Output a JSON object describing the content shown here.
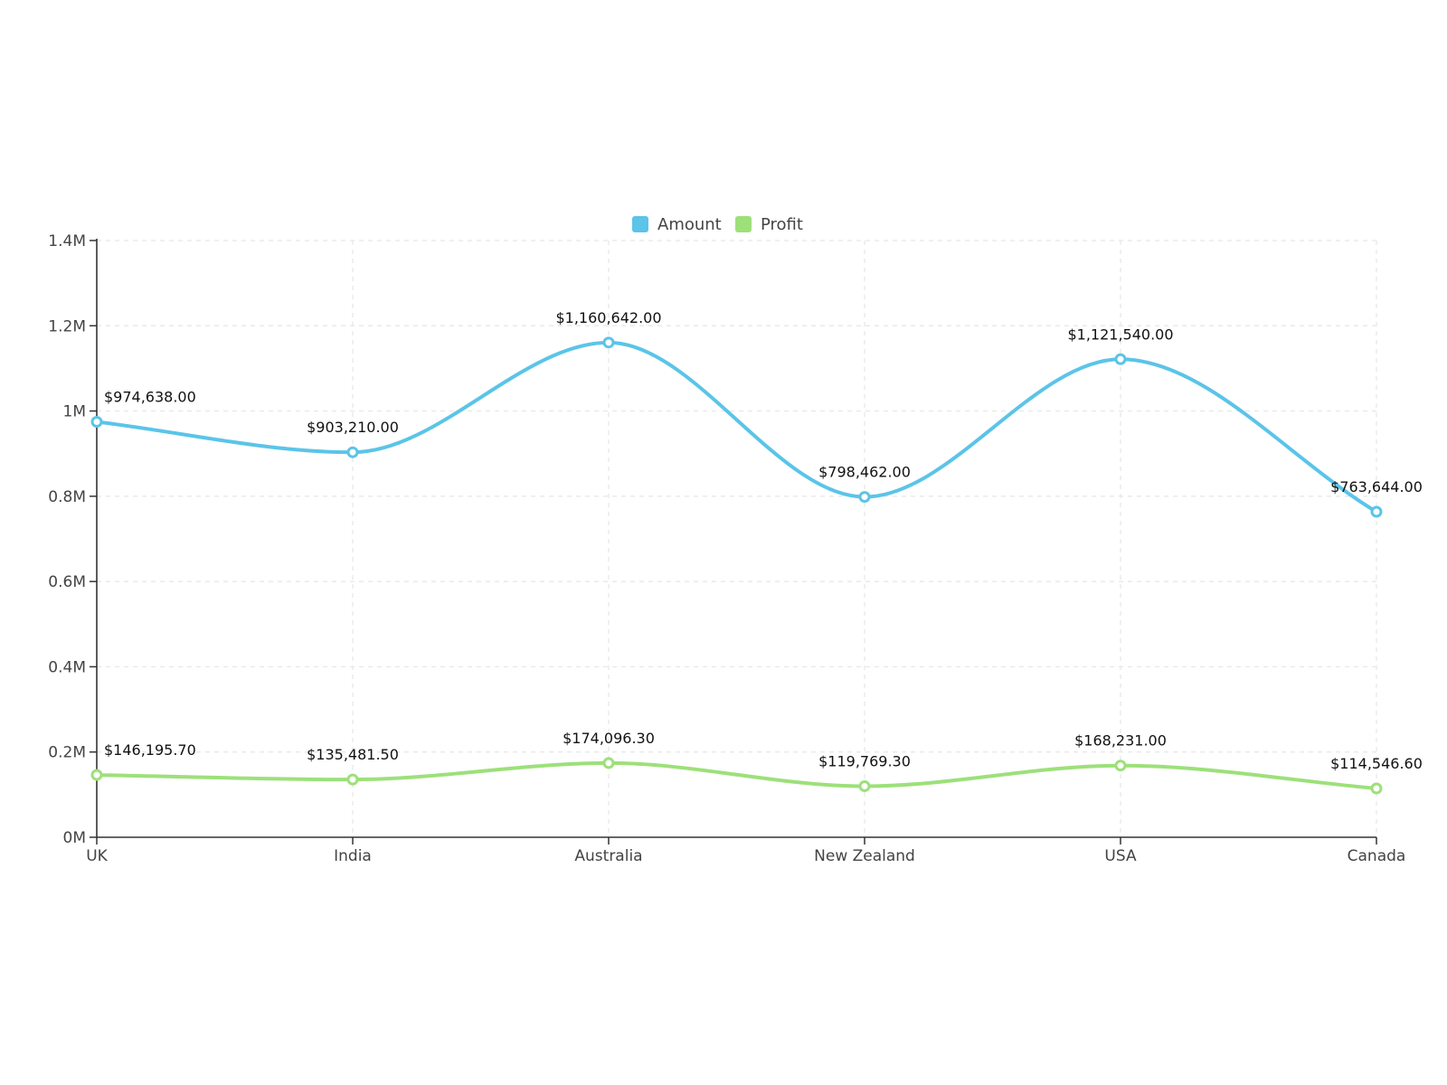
{
  "chart_data": {
    "type": "line",
    "title": "",
    "xlabel": "",
    "ylabel": "",
    "categories": [
      "UK",
      "India",
      "Australia",
      "New Zealand",
      "USA",
      "Canada"
    ],
    "ylim": [
      0,
      1400000
    ],
    "y_ticks": [
      0,
      200000,
      400000,
      600000,
      800000,
      1000000,
      1200000,
      1400000
    ],
    "y_tick_labels": [
      "0M",
      "0.2M",
      "0.4M",
      "0.6M",
      "0.8M",
      "1M",
      "1.2M",
      "1.4M"
    ],
    "grid": true,
    "legend_position": "top-center",
    "series": [
      {
        "name": "Amount",
        "color": "#5bc4e8",
        "values": [
          974638.0,
          903210.0,
          1160642.0,
          798462.0,
          1121540.0,
          763644.0
        ],
        "labels": [
          "$974,638.00",
          "$903,210.00",
          "$1,160,642.00",
          "$798,462.00",
          "$1,121,540.00",
          "$763,644.00"
        ]
      },
      {
        "name": "Profit",
        "color": "#9de07a",
        "values": [
          146195.7,
          135481.5,
          174096.3,
          119769.3,
          168231.0,
          114546.6
        ],
        "labels": [
          "$146,195.70",
          "$135,481.50",
          "$174,096.30",
          "$119,769.30",
          "$168,231.00",
          "$114,546.60"
        ]
      }
    ]
  }
}
